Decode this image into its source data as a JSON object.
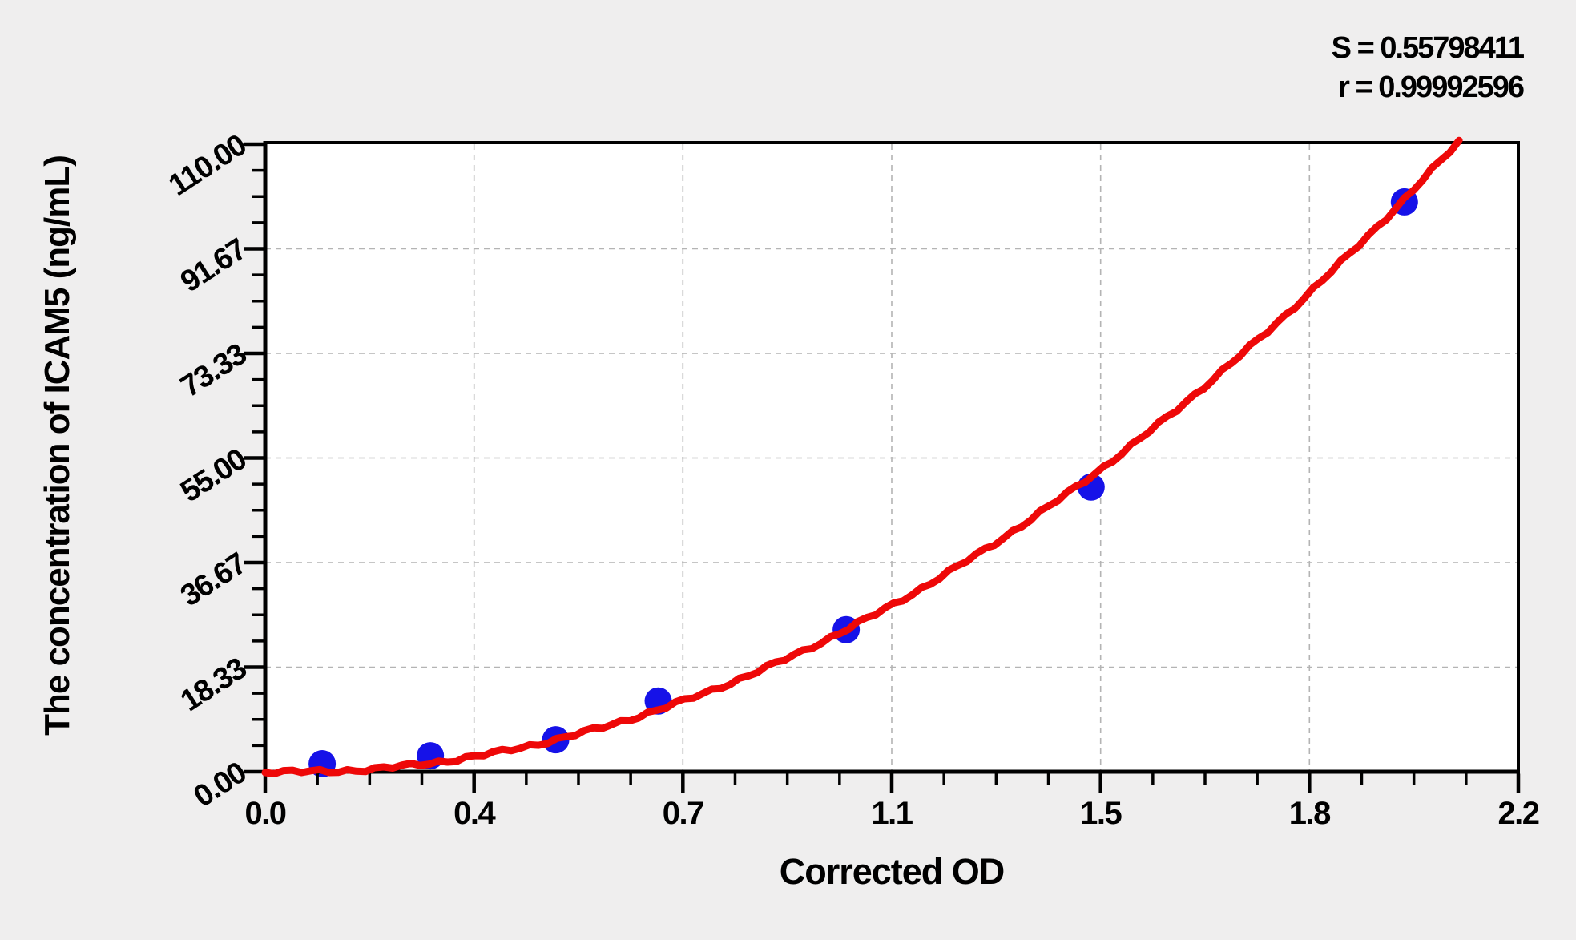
{
  "page": {
    "background": "#efeeee"
  },
  "stats": {
    "s": "S = 0.55798411",
    "r": "r = 0.99992596"
  },
  "chart_data": {
    "type": "scatter",
    "title": "",
    "xlabel": "Corrected OD",
    "ylabel": "The concentration of ICAM5 (ng/mL)",
    "xlim": [
      0,
      2.2
    ],
    "ylim": [
      0,
      110
    ],
    "grid": "dashed gray lines at every major tick",
    "legend_position": "none",
    "x_ticks": {
      "values": [
        0,
        0.3667,
        0.7333,
        1.1,
        1.4667,
        1.8333,
        2.2
      ],
      "labels": [
        "0.0",
        "0.4",
        "0.7",
        "1.1",
        "1.5",
        "1.8",
        "2.2"
      ],
      "minor_per_interval": 3
    },
    "y_ticks": {
      "values": [
        0,
        18.333,
        36.667,
        55,
        73.333,
        91.667,
        110
      ],
      "labels": [
        "0.00",
        "18.33",
        "36.67",
        "55.00",
        "73.33",
        "91.67",
        "110.00"
      ],
      "minor_per_interval": 3
    },
    "series": [
      {
        "name": "standard-points",
        "type": "scatter",
        "color": "#1612e8",
        "marker_radius": 17,
        "points": [
          {
            "x": 0.1,
            "y": 1.4
          },
          {
            "x": 0.29,
            "y": 2.8
          },
          {
            "x": 0.51,
            "y": 5.6
          },
          {
            "x": 0.69,
            "y": 12.4
          },
          {
            "x": 1.02,
            "y": 24.9
          },
          {
            "x": 1.45,
            "y": 49.9
          },
          {
            "x": 2.0,
            "y": 99.9
          }
        ]
      },
      {
        "name": "fit-curve",
        "type": "line",
        "color": "#ee0808",
        "width": 9,
        "model": "quadratic",
        "params": {
          "a": 26.3,
          "b": -2.4,
          "c": 0
        },
        "x_range": [
          0,
          2.097
        ]
      }
    ],
    "fit_stats": {
      "S": "0.55798411",
      "r": "0.99992596"
    },
    "colors": {
      "page_bg": "#efeeee",
      "plot_bg": "#ffffff",
      "axis": "#000000",
      "grid": "#b4b4b4",
      "point": "#1612e8",
      "curve": "#ee0808"
    }
  }
}
